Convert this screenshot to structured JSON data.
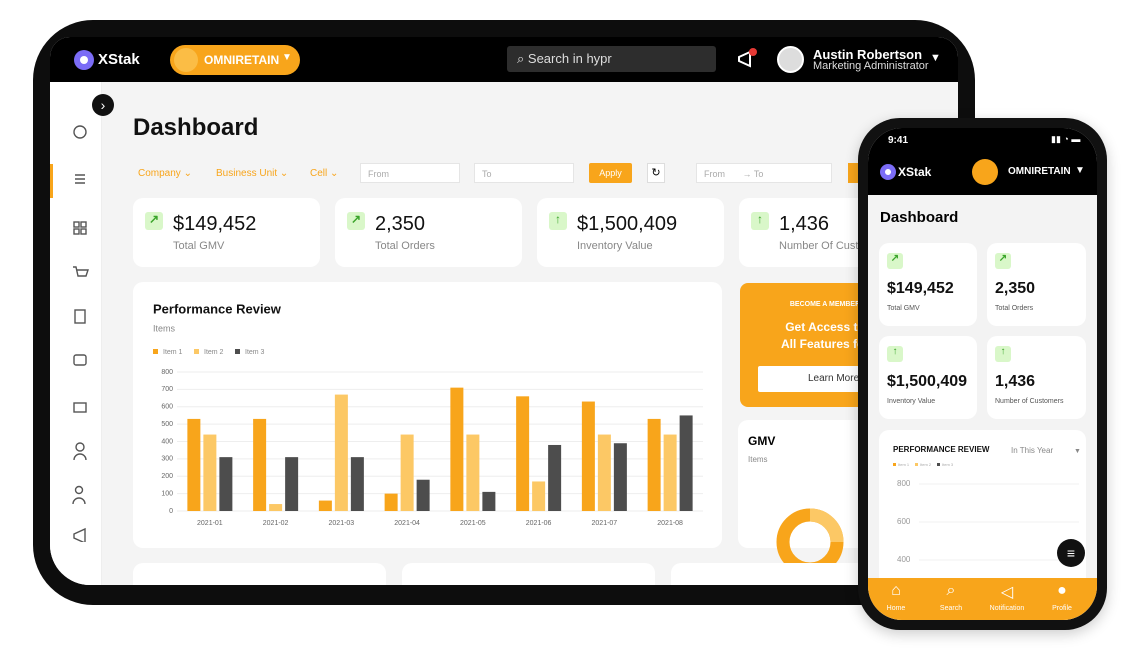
{
  "tablet": {
    "brand": "XStak",
    "product": "OMNIRETAIN",
    "search": "Search in hypr",
    "user": {
      "name": "Austin Robertson",
      "role": "Marketing Administrator"
    },
    "title": "Dashboard",
    "filters": [
      "Company",
      "Business Unit",
      "Cell"
    ],
    "date_range": {
      "from": "From",
      "to": "To"
    },
    "apply": "Apply",
    "date_range_2": {
      "from": "From",
      "to": "To"
    },
    "kpis": [
      {
        "value": "$149,452",
        "label": "Total GMV"
      },
      {
        "value": "2,350",
        "label": "Total Orders"
      },
      {
        "value": "$1,500,409",
        "label": "Inventory Value"
      },
      {
        "value": "1,436",
        "label": "Number Of Customers"
      }
    ],
    "promo": {
      "eyebrow": "BECOME A MEMBER",
      "line1": "Get Access to",
      "line2": "All Features for",
      "button": "Learn More"
    },
    "gmv": {
      "title": "GMV",
      "subtitle": "Items"
    }
  },
  "phone": {
    "time": "9:41",
    "brand": "XStak",
    "product": "OMNIRETAIN",
    "title": "Dashboard",
    "kpis": [
      {
        "value": "$149,452",
        "label": "Total GMV"
      },
      {
        "value": "2,350",
        "label": "Total Orders"
      },
      {
        "value": "$1,500,409",
        "label": "Inventory Value"
      },
      {
        "value": "1,436",
        "label": "Number of Customers"
      }
    ],
    "chart": {
      "title": "PERFORMANCE REVIEW",
      "period": "In This Year",
      "legend": [
        "Item 1",
        "Item 2",
        "Item 3"
      ],
      "yticks": [
        800,
        600,
        400
      ]
    },
    "tabs": [
      "Home",
      "Search",
      "Notification",
      "Profile"
    ]
  },
  "chart_data": {
    "type": "bar",
    "title": "Performance Review",
    "subtitle": "Items",
    "categories": [
      "2021-01",
      "2021-02",
      "2021-03",
      "2021-04",
      "2021-05",
      "2021-06",
      "2021-07",
      "2021-08"
    ],
    "series": [
      {
        "name": "Item 1",
        "color": "#f8a51b",
        "values": [
          530,
          530,
          60,
          100,
          710,
          660,
          630,
          530
        ]
      },
      {
        "name": "Item 2",
        "color": "#fcc865",
        "values": [
          440,
          40,
          670,
          440,
          440,
          170,
          440,
          440
        ]
      },
      {
        "name": "Item 3",
        "color": "#4d4d4d",
        "values": [
          310,
          310,
          310,
          180,
          110,
          380,
          390,
          550
        ]
      }
    ],
    "ylim": [
      0,
      800
    ],
    "yticks": [
      0,
      100,
      200,
      300,
      400,
      500,
      600,
      700,
      800
    ],
    "grid": true,
    "legend": "top-left"
  }
}
